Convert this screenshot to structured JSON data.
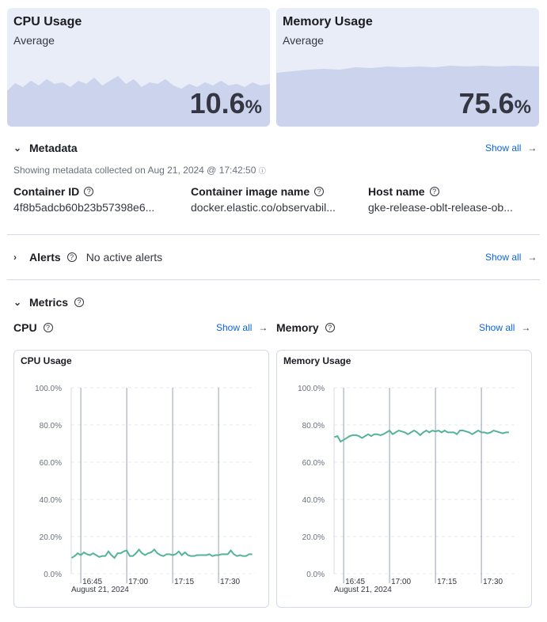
{
  "kpis": [
    {
      "title": "CPU Usage",
      "subtitle": "Average",
      "value": "10.6",
      "unit": "%"
    },
    {
      "title": "Memory Usage",
      "subtitle": "Average",
      "value": "75.6",
      "unit": "%"
    }
  ],
  "metadata": {
    "title": "Metadata",
    "show_all": "Show all",
    "collected": "Showing metadata collected on Aug 21, 2024 @ 17:42:50",
    "fields": [
      {
        "label": "Container ID",
        "value": "4f8b5adcb60b23b57398e6..."
      },
      {
        "label": "Container image name",
        "value": "docker.elastic.co/observabil..."
      },
      {
        "label": "Host name",
        "value": "gke-release-oblt-release-ob..."
      }
    ]
  },
  "alerts": {
    "title": "Alerts",
    "status": "No active alerts",
    "show_all": "Show all"
  },
  "metrics": {
    "title": "Metrics",
    "cpu": {
      "title": "CPU",
      "show_all": "Show all"
    },
    "memory": {
      "title": "Memory",
      "show_all": "Show all"
    }
  },
  "colors": {
    "line": "#54b399",
    "link": "#0b64dd",
    "kpi_bg": "#e9edf8",
    "kpi_area": "#cbd4ec"
  },
  "chart_data": [
    {
      "type": "line",
      "title": "CPU Usage",
      "ylim": [
        0,
        100
      ],
      "yticks": [
        "100.0%",
        "80.0%",
        "60.0%",
        "40.0%",
        "20.0%",
        "0.0%"
      ],
      "xticks": [
        "16:45",
        "17:00",
        "17:15",
        "17:30"
      ],
      "xsub": "August 21, 2024",
      "grid": true,
      "x_start": "16:42",
      "x_step_minutes": 1,
      "values": [
        8.5,
        9.5,
        11,
        10,
        11.5,
        10.5,
        10,
        11,
        10,
        9,
        9.5,
        9.5,
        12,
        10,
        8.5,
        11,
        11,
        12,
        12.5,
        9.5,
        9.5,
        11,
        13,
        11,
        10,
        11,
        11.5,
        13,
        11,
        10,
        9.5,
        10.5,
        10.5,
        10,
        10.5,
        12,
        10,
        11.5,
        10,
        9.5,
        9.5,
        10,
        10,
        10,
        10,
        10.5,
        9.5,
        10,
        10,
        10.5,
        10.5,
        10.5,
        12.5,
        10.5,
        9.5,
        10,
        9.5,
        9.5,
        10.5,
        10.5
      ]
    },
    {
      "type": "line",
      "title": "Memory Usage",
      "ylim": [
        0,
        100
      ],
      "yticks": [
        "100.0%",
        "80.0%",
        "60.0%",
        "40.0%",
        "20.0%",
        "0.0%"
      ],
      "xticks": [
        "16:45",
        "17:00",
        "17:15",
        "17:30"
      ],
      "xsub": "August 21, 2024",
      "grid": true,
      "x_start": "16:42",
      "x_step_minutes": 1,
      "values": [
        73.5,
        74,
        71,
        72,
        73,
        74,
        74.5,
        74.5,
        74,
        73,
        74,
        75,
        74,
        75,
        75,
        74.5,
        75,
        76,
        77,
        75,
        76,
        77,
        76.5,
        76,
        75,
        76,
        77,
        76,
        74.5,
        76,
        77,
        76,
        77,
        76.5,
        77,
        76,
        77,
        76,
        76,
        76,
        75,
        77,
        77,
        76.5,
        76,
        75,
        76,
        77,
        76,
        76,
        75.5,
        76,
        77,
        76.5,
        76,
        75.5,
        76,
        76
      ]
    }
  ]
}
